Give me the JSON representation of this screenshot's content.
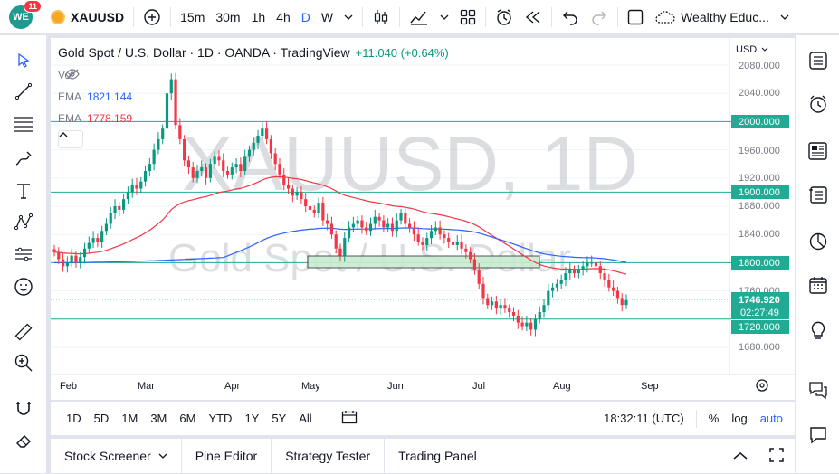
{
  "topbar": {
    "logo_text": "WE",
    "notification_count": "11",
    "symbol": "XAUUSD",
    "timeframes": [
      "15m",
      "30m",
      "1h",
      "4h",
      "D",
      "W"
    ],
    "active_timeframe": "D",
    "layout_name": "Wealthy Educ..."
  },
  "chart": {
    "title": "Gold Spot / U.S. Dollar · 1D · OANDA · TradingView",
    "change": "+11.040 (+0.64%)",
    "vol_label": "Vol",
    "ema1_label": "EMA",
    "ema1_value": "1821.144",
    "ema2_label": "EMA",
    "ema2_value": "1778.159",
    "currency": "USD",
    "watermark_symbol": "XAUUSD, 1D",
    "watermark_desc": "Gold Spot / U.S. Dollar",
    "colors": {
      "up": "#089981",
      "down": "#f23645",
      "ema_fast": "#f23645",
      "ema_slow": "#2962ff",
      "hline": "#22ab94",
      "badge": "#22ab94"
    }
  },
  "price_axis": {
    "ticks": [
      "2080.000",
      "2040.000",
      "2000.000",
      "1960.000",
      "1920.000",
      "1900.000",
      "1880.000",
      "1840.000",
      "1800.000",
      "1760.000",
      "1746.920",
      "02:27:49",
      "1720.000",
      "1680.000"
    ]
  },
  "levels": {
    "l2000": "2000.000",
    "l1900": "1900.000",
    "l1800": "1800.000",
    "l1720": "1720.000",
    "last_price": "1746.920",
    "countdown": "02:27:49"
  },
  "time_axis": [
    "Feb",
    "Mar",
    "Apr",
    "May",
    "Jun",
    "Jul",
    "Aug",
    "Sep"
  ],
  "bottom": {
    "ranges": [
      "1D",
      "5D",
      "1M",
      "3M",
      "6M",
      "YTD",
      "1Y",
      "5Y",
      "All"
    ],
    "clock": "18:32:11 (UTC)",
    "pct": "%",
    "log": "log",
    "auto": "auto"
  },
  "panels": {
    "stock_screener": "Stock Screener",
    "pine_editor": "Pine Editor",
    "strategy_tester": "Strategy Tester",
    "trading_panel": "Trading Panel"
  }
}
